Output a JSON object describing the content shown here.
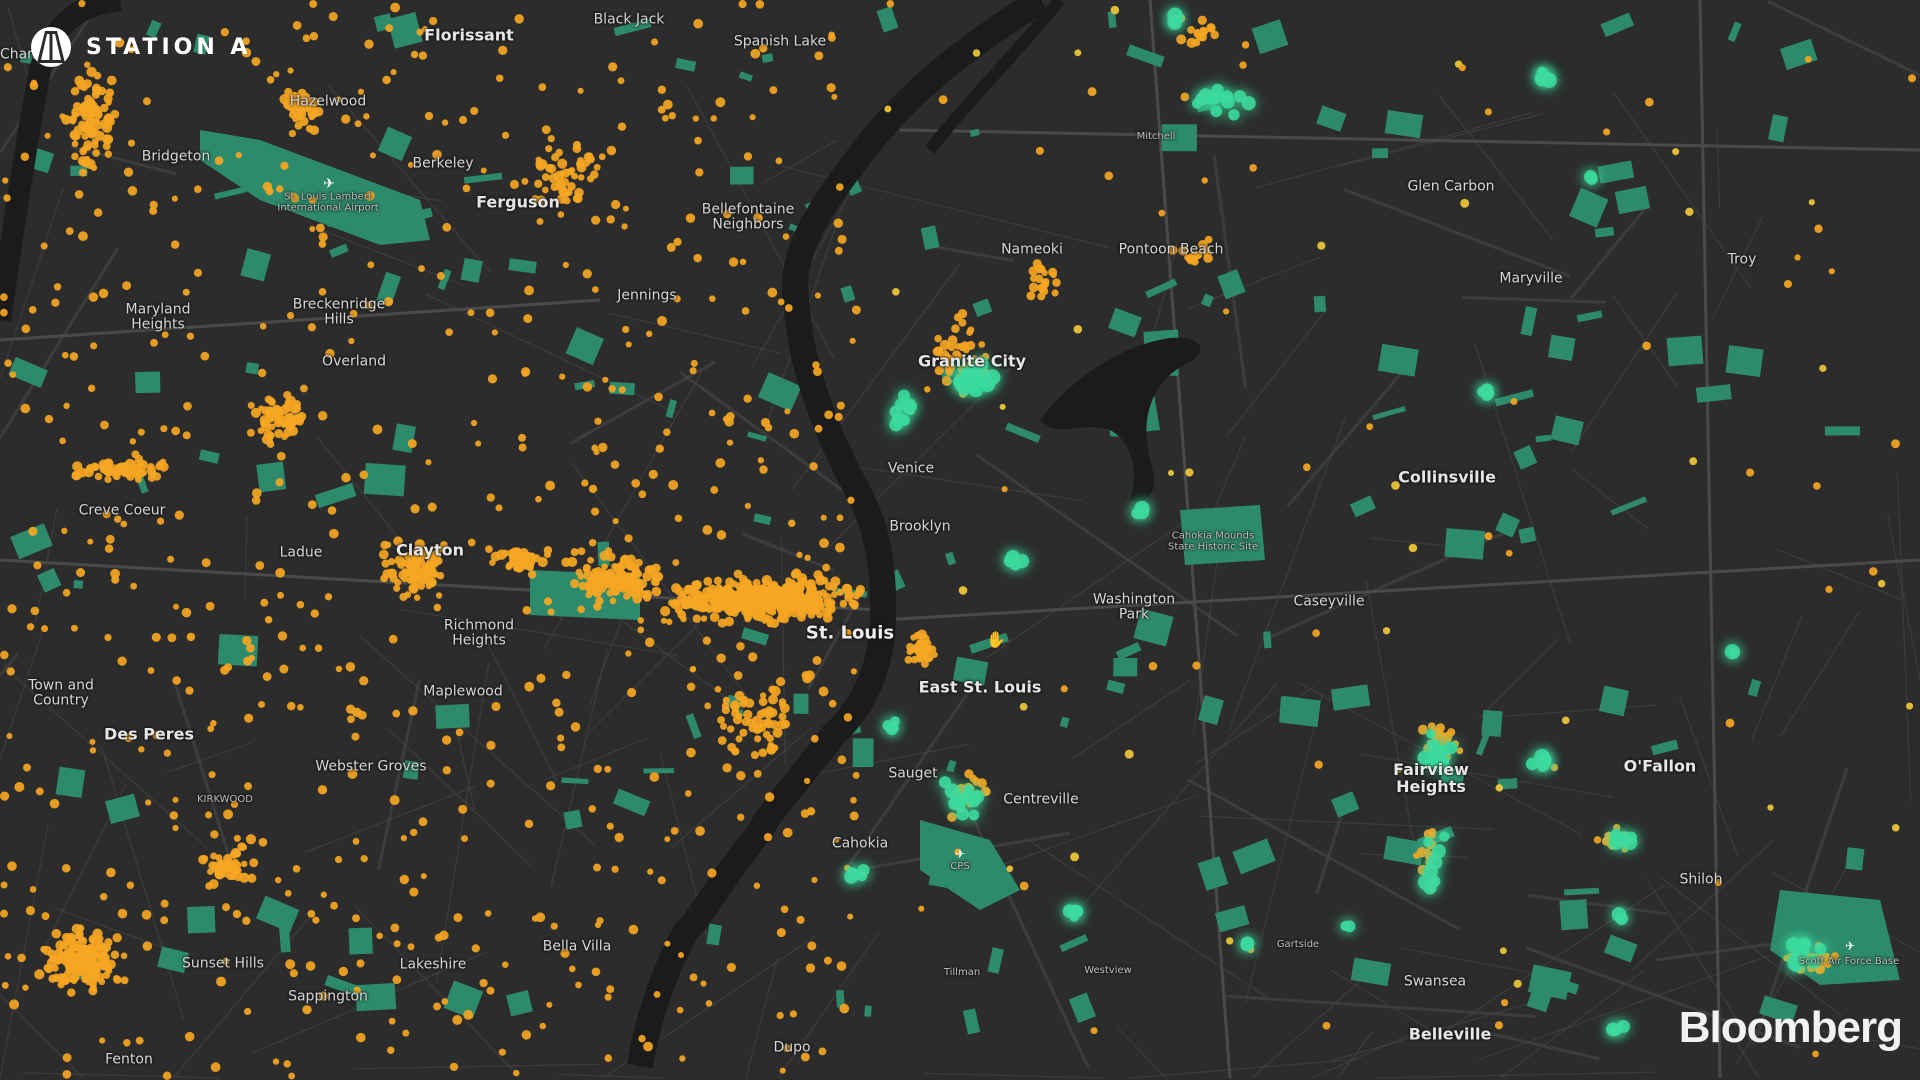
{
  "brand": {
    "station_logo_text": "STATION A",
    "publisher_logo_text": "Bloomberg"
  },
  "colors": {
    "background": "#2c2c2c",
    "river": "#1b1b1b",
    "park": "#2e8a6c",
    "road": "#444444",
    "orange_dot": "#f5a623",
    "teal_dot": "#3ddba0"
  },
  "map": {
    "labels": [
      {
        "text": "Chan",
        "kind": "normal"
      },
      {
        "text": "Florissant",
        "kind": "city"
      },
      {
        "text": "Black Jack",
        "kind": "normal"
      },
      {
        "text": "Spanish Lake",
        "kind": "normal"
      },
      {
        "text": "Hazelwood",
        "kind": "normal"
      },
      {
        "text": "Bridgeton",
        "kind": "normal"
      },
      {
        "text": "Berkeley",
        "kind": "normal"
      },
      {
        "text": "St. Louis Lambert\nInternational Airport",
        "kind": "small"
      },
      {
        "text": "Ferguson",
        "kind": "city"
      },
      {
        "text": "Bellefontaine\nNeighbors",
        "kind": "normal"
      },
      {
        "text": "Mitchell",
        "kind": "small"
      },
      {
        "text": "Glen Carbon",
        "kind": "normal"
      },
      {
        "text": "Nameoki",
        "kind": "normal"
      },
      {
        "text": "Pontoon Beach",
        "kind": "normal"
      },
      {
        "text": "Troy",
        "kind": "normal"
      },
      {
        "text": "Maryville",
        "kind": "normal"
      },
      {
        "text": "Jennings",
        "kind": "normal"
      },
      {
        "text": "Maryland\nHeights",
        "kind": "normal"
      },
      {
        "text": "Breckenridge\nHills",
        "kind": "normal"
      },
      {
        "text": "Overland",
        "kind": "normal"
      },
      {
        "text": "Granite City",
        "kind": "city"
      },
      {
        "text": "Venice",
        "kind": "normal"
      },
      {
        "text": "Collinsville",
        "kind": "city"
      },
      {
        "text": "Creve Coeur",
        "kind": "normal"
      },
      {
        "text": "Brooklyn",
        "kind": "normal"
      },
      {
        "text": "Cahokia Mounds\nState Historic Site",
        "kind": "small"
      },
      {
        "text": "Ladue",
        "kind": "normal"
      },
      {
        "text": "Clayton",
        "kind": "city"
      },
      {
        "text": "Washington\nPark",
        "kind": "normal"
      },
      {
        "text": "Caseyville",
        "kind": "normal"
      },
      {
        "text": "Richmond\nHeights",
        "kind": "normal"
      },
      {
        "text": "St. Louis",
        "kind": "major"
      },
      {
        "text": "East St. Louis",
        "kind": "city"
      },
      {
        "text": "Town and\nCountry",
        "kind": "normal"
      },
      {
        "text": "Maplewood",
        "kind": "normal"
      },
      {
        "text": "Des Peres",
        "kind": "city"
      },
      {
        "text": "Sauget",
        "kind": "normal"
      },
      {
        "text": "Webster Groves",
        "kind": "normal"
      },
      {
        "text": "Fairview\nHeights",
        "kind": "city"
      },
      {
        "text": "O'Fallon",
        "kind": "city"
      },
      {
        "text": "KIRKWOOD",
        "kind": "small"
      },
      {
        "text": "Centreville",
        "kind": "normal"
      },
      {
        "text": "Cahokia",
        "kind": "normal"
      },
      {
        "text": "CPS",
        "kind": "small"
      },
      {
        "text": "Shiloh",
        "kind": "normal"
      },
      {
        "text": "Bella Villa",
        "kind": "normal"
      },
      {
        "text": "Gartside",
        "kind": "small"
      },
      {
        "text": "Sunset Hills",
        "kind": "normal"
      },
      {
        "text": "Lakeshire",
        "kind": "normal"
      },
      {
        "text": "Tillman",
        "kind": "small"
      },
      {
        "text": "Westview",
        "kind": "small"
      },
      {
        "text": "Scott Air Force Base",
        "kind": "small"
      },
      {
        "text": "Swansea",
        "kind": "normal"
      },
      {
        "text": "Sappington",
        "kind": "normal"
      },
      {
        "text": "Belleville",
        "kind": "city"
      },
      {
        "text": "Dupo",
        "kind": "normal"
      },
      {
        "text": "Fenton",
        "kind": "normal"
      }
    ],
    "icons": {
      "airport": "airplane-icon",
      "cursor": "hand-cursor-icon"
    }
  }
}
